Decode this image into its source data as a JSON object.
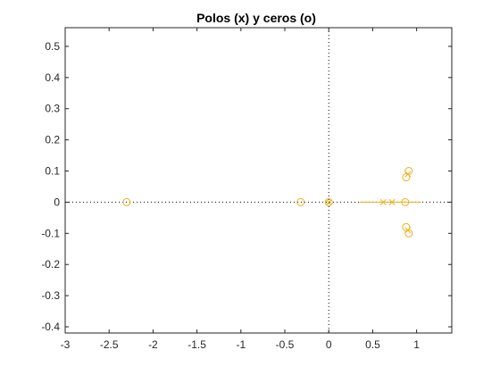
{
  "chart_data": {
    "type": "scatter",
    "title": "Polos (x) y ceros (o)",
    "xlabel": "",
    "ylabel": "",
    "xlim": [
      -3,
      1.4
    ],
    "ylim": [
      -0.42,
      0.56
    ],
    "xticks": [
      -3,
      -2.5,
      -2,
      -1.5,
      -1,
      -0.5,
      0,
      0.5,
      1
    ],
    "yticks": [
      -0.4,
      -0.3,
      -0.2,
      -0.1,
      0,
      0.1,
      0.2,
      0.3,
      0.4,
      0.5
    ],
    "xtick_labels": [
      "-3",
      "-2.5",
      "-2",
      "-1.5",
      "-1",
      "-0.5",
      "0",
      "0.5",
      "1"
    ],
    "ytick_labels": [
      "-0.4",
      "-0.3",
      "-0.2",
      "-0.1",
      "0",
      "0.1",
      "0.2",
      "0.3",
      "0.4",
      "0.5"
    ],
    "grid": false,
    "marker_color": "#EDB120",
    "series": [
      {
        "marker": "x",
        "points": [
          {
            "x": 0.0,
            "y": 0.0
          },
          {
            "x": 0.62,
            "y": 0.0
          },
          {
            "x": 0.72,
            "y": 0.0
          },
          {
            "x": 0.9,
            "y": 0.09
          },
          {
            "x": 0.9,
            "y": -0.09
          }
        ]
      },
      {
        "marker": "o",
        "points": [
          {
            "x": -2.3,
            "y": 0.0
          },
          {
            "x": -0.32,
            "y": 0.0
          },
          {
            "x": 0.0,
            "y": 0.0
          },
          {
            "x": 0.87,
            "y": 0.0
          },
          {
            "x": 0.88,
            "y": 0.08
          },
          {
            "x": 0.91,
            "y": 0.1
          },
          {
            "x": 0.88,
            "y": -0.08
          },
          {
            "x": 0.91,
            "y": -0.1
          }
        ]
      }
    ],
    "reference_lines": [
      {
        "orientation": "horizontal",
        "value": 0,
        "style": "dotted"
      },
      {
        "orientation": "vertical",
        "value": 0,
        "style": "dotted"
      }
    ],
    "segments": [
      {
        "x1": 0.35,
        "y1": 0.0,
        "x2": 1.05,
        "y2": 0.0
      }
    ]
  }
}
